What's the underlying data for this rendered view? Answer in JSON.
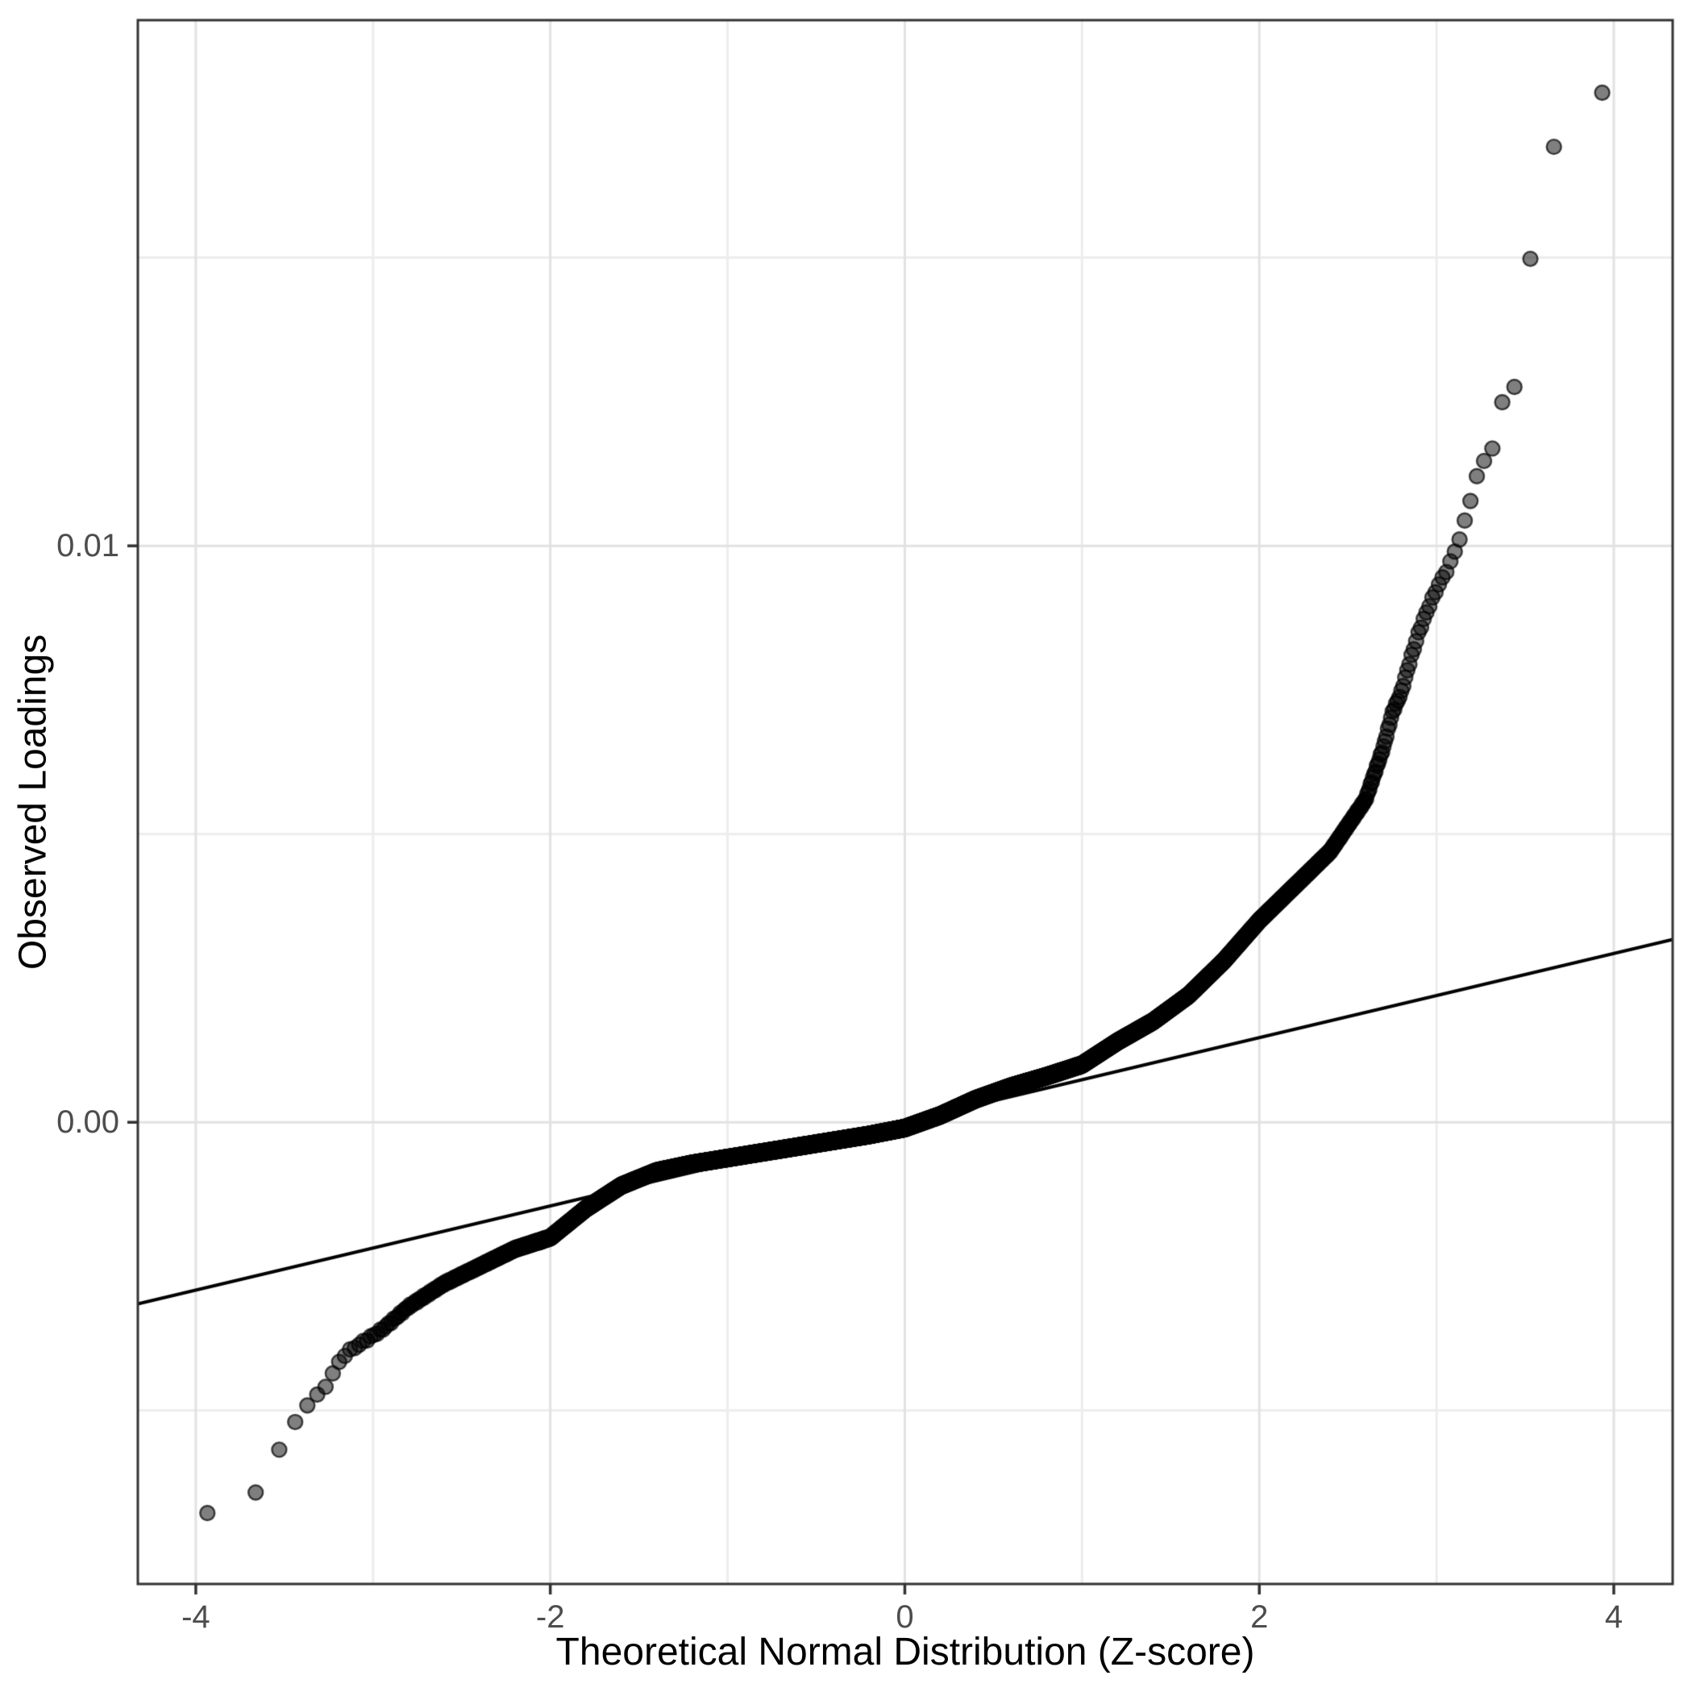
{
  "figure": {
    "background": "#ffffff",
    "panel_border_color": "#333333",
    "grid_major_color": "#e2e2e2",
    "grid_minor_color": "#ededed",
    "tick_mark_color": "#333333",
    "tick_label_color": "#4d4d4d",
    "axis_title_color": "#000000"
  },
  "chart_data": {
    "type": "scatter",
    "subtype": "qq-plot",
    "title": "",
    "xlabel": "Theoretical Normal Distribution (Z-score)",
    "ylabel": "Observed Loadings",
    "x_domain": [
      -4.327,
      4.332
    ],
    "y_domain": [
      -0.00801,
      0.01912
    ],
    "x_ticks": [
      {
        "value": -4,
        "label": "-4"
      },
      {
        "value": -2,
        "label": "-2"
      },
      {
        "value": 0,
        "label": "0"
      },
      {
        "value": 2,
        "label": "2"
      },
      {
        "value": 4,
        "label": "4"
      }
    ],
    "y_ticks": [
      {
        "value": 0.0,
        "label": "0.00"
      },
      {
        "value": 0.01,
        "label": "0.01"
      }
    ],
    "x_minor": [
      -3,
      -1,
      1,
      3
    ],
    "y_minor": [
      -0.005,
      0.005,
      0.015
    ],
    "grid": true,
    "legend": "none",
    "n_points": 12000,
    "qq_line": {
      "x1": -4.327,
      "y1": -0.00315,
      "x2": 4.332,
      "y2": 0.00317
    },
    "curve_anchors": {
      "z": [
        -3.94,
        -3.66,
        -3.53,
        -3.44,
        -3.37,
        -3.3,
        -3.25,
        -3.2,
        -3.15,
        -3.05,
        -2.95,
        -2.8,
        -2.6,
        -2.4,
        -2.2,
        -2.0,
        -1.8,
        -1.6,
        -1.4,
        -1.2,
        -1.0,
        -0.8,
        -0.6,
        -0.4,
        -0.2,
        0.0,
        0.2,
        0.4,
        0.6,
        0.8,
        1.0,
        1.2,
        1.4,
        1.6,
        1.8,
        2.0,
        2.2,
        2.4,
        2.6,
        2.7,
        2.75,
        2.8,
        2.85,
        2.9,
        2.95,
        3.0,
        3.07,
        3.14,
        3.2,
        3.25,
        3.3,
        3.38,
        3.45,
        3.53,
        3.66,
        3.94
      ],
      "loading": [
        -0.0068,
        -0.0064,
        -0.0057,
        -0.0052,
        -0.0049,
        -0.0047,
        -0.0045,
        -0.0042,
        -0.004,
        -0.0038,
        -0.0036,
        -0.0032,
        -0.0028,
        -0.0025,
        -0.0022,
        -0.002,
        -0.0015,
        -0.0011,
        -0.00085,
        -0.00072,
        -0.00062,
        -0.00052,
        -0.00042,
        -0.00032,
        -0.00022,
        -0.0001,
        0.00012,
        0.0004,
        0.00062,
        0.0008,
        0.001,
        0.0014,
        0.00175,
        0.0022,
        0.0028,
        0.0035,
        0.0041,
        0.0047,
        0.0056,
        0.0065,
        0.0071,
        0.00745,
        0.008,
        0.0085,
        0.0089,
        0.00925,
        0.00965,
        0.0102,
        0.0109,
        0.01145,
        0.0115,
        0.0126,
        0.0128,
        0.015,
        0.0169,
        0.0179
      ]
    },
    "point_style": {
      "radius": 9,
      "fill": "rgba(0,0,0,0.50)",
      "stroke": "rgba(0,0,0,0.70)",
      "stroke_width": 2.4
    },
    "line_style": {
      "color": "#000000",
      "width": 4
    }
  }
}
